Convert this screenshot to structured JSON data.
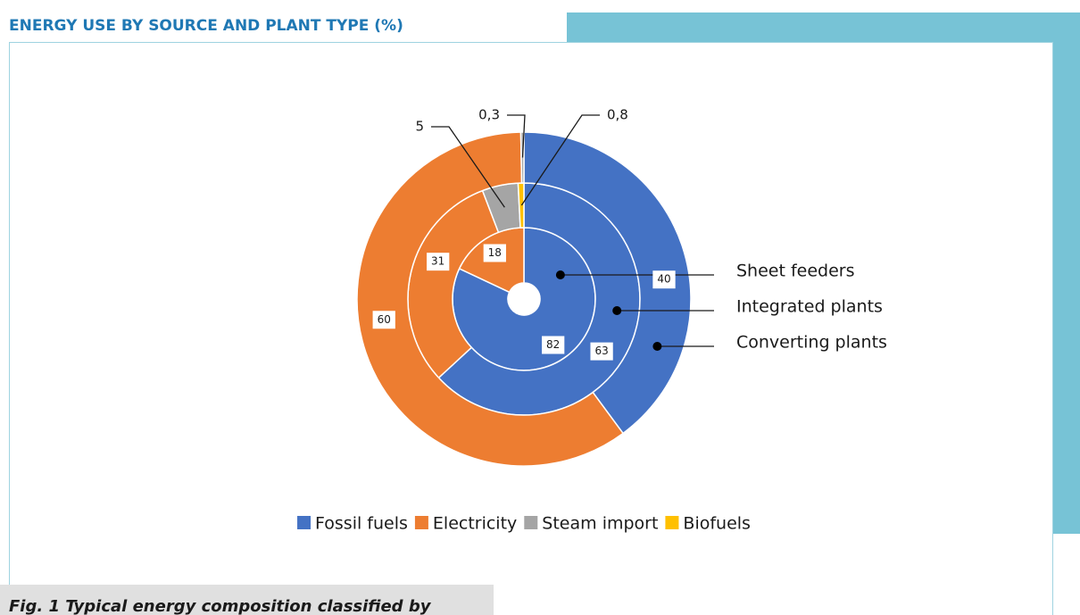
{
  "chart_data": {
    "type": "donut",
    "title": "ENERGY USE BY SOURCE AND PLANT TYPE (%)",
    "caption": "Fig. 1 Typical energy composition classified by",
    "categories": [
      "Sheet feeders",
      "Integrated plants",
      "Converting plants"
    ],
    "series": [
      {
        "name": "Fossil fuels",
        "color": "#4472c4",
        "values": [
          82,
          63,
          40
        ]
      },
      {
        "name": "Electricity",
        "color": "#ed7d31",
        "values": [
          18,
          31,
          60
        ]
      },
      {
        "name": "Steam import",
        "color": "#a5a5a5",
        "values": [
          null,
          5,
          0.3
        ],
        "value_labels": [
          null,
          "5",
          "0,3"
        ]
      },
      {
        "name": "Biofuels",
        "color": "#ffc000",
        "values": [
          null,
          0.8,
          null
        ],
        "value_labels": [
          null,
          "0,8",
          null
        ]
      }
    ],
    "legend": "bottom"
  }
}
